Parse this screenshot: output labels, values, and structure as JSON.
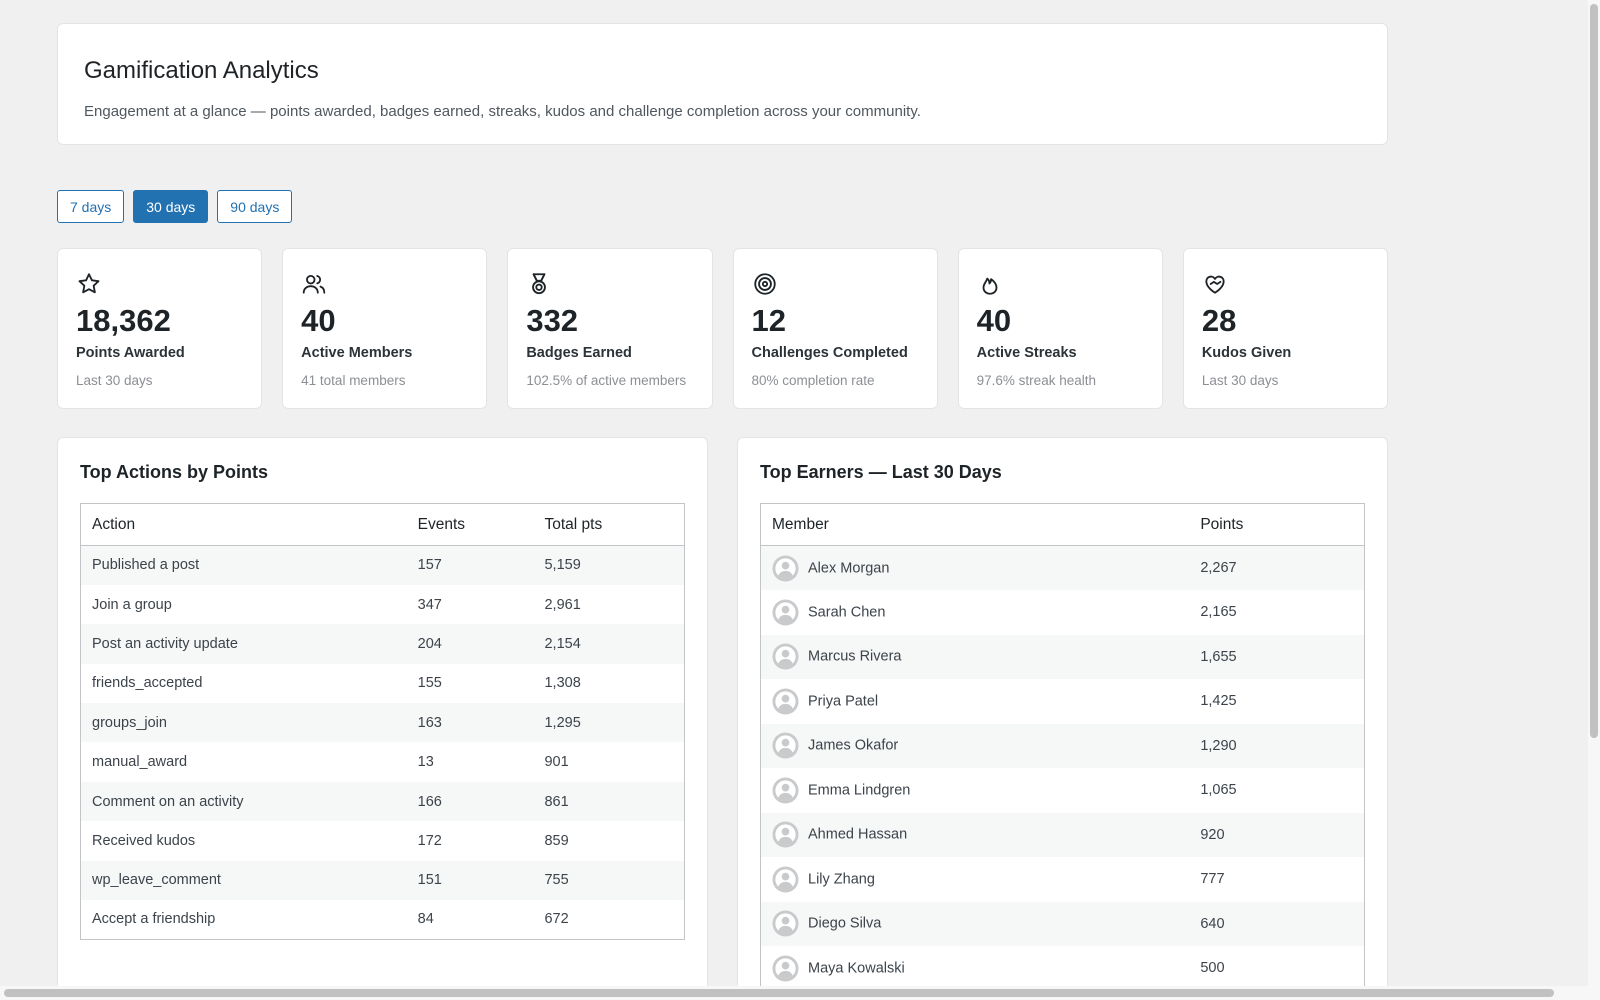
{
  "header": {
    "title": "Gamification Analytics",
    "subtitle": "Engagement at a glance — points awarded, badges earned, streaks, kudos and challenge completion across your community."
  },
  "range_buttons": [
    {
      "label": "7 days",
      "active": false
    },
    {
      "label": "30 days",
      "active": true
    },
    {
      "label": "90 days",
      "active": false
    }
  ],
  "stats": [
    {
      "value": "18,362",
      "label": "Points Awarded",
      "note": "Last 30 days"
    },
    {
      "value": "40",
      "label": "Active Members",
      "note": "41 total members"
    },
    {
      "value": "332",
      "label": "Badges Earned",
      "note": "102.5% of active members"
    },
    {
      "value": "12",
      "label": "Challenges Completed",
      "note": "80% completion rate"
    },
    {
      "value": "40",
      "label": "Active Streaks",
      "note": "97.6% streak health"
    },
    {
      "value": "28",
      "label": "Kudos Given",
      "note": "Last 30 days"
    }
  ],
  "actions_table": {
    "title": "Top Actions by Points",
    "columns": [
      "Action",
      "Events",
      "Total pts"
    ],
    "rows": [
      [
        "Published a post",
        "157",
        "5,159"
      ],
      [
        "Join a group",
        "347",
        "2,961"
      ],
      [
        "Post an activity update",
        "204",
        "2,154"
      ],
      [
        "friends_accepted",
        "155",
        "1,308"
      ],
      [
        "groups_join",
        "163",
        "1,295"
      ],
      [
        "manual_award",
        "13",
        "901"
      ],
      [
        "Comment on an activity",
        "166",
        "861"
      ],
      [
        "Received kudos",
        "172",
        "859"
      ],
      [
        "wp_leave_comment",
        "151",
        "755"
      ],
      [
        "Accept a friendship",
        "84",
        "672"
      ]
    ]
  },
  "earners_table": {
    "title": "Top Earners — Last 30 Days",
    "columns": [
      "Member",
      "Points"
    ],
    "rows": [
      [
        "Alex Morgan",
        "2,267"
      ],
      [
        "Sarah Chen",
        "2,165"
      ],
      [
        "Marcus Rivera",
        "1,655"
      ],
      [
        "Priya Patel",
        "1,425"
      ],
      [
        "James Okafor",
        "1,290"
      ],
      [
        "Emma Lindgren",
        "1,065"
      ],
      [
        "Ahmed Hassan",
        "920"
      ],
      [
        "Lily Zhang",
        "777"
      ],
      [
        "Diego Silva",
        "640"
      ],
      [
        "Maya Kowalski",
        "500"
      ]
    ]
  }
}
